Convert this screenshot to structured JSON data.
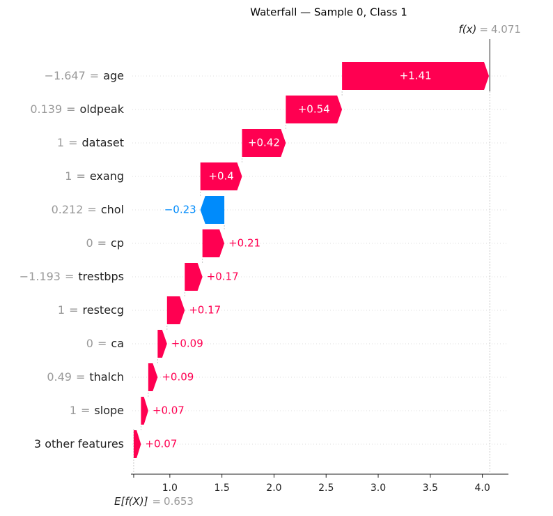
{
  "chart_data": {
    "type": "waterfall",
    "title": "Waterfall — Sample 0, Class 1",
    "separator": "=",
    "fx_label": "f(x)",
    "fx_value": 4.071,
    "base_label": "E[f(X)]",
    "base_value": 0.653,
    "feature_values": [
      "−1.647",
      "0.139",
      "1",
      "1",
      "0.212",
      "0",
      "−1.193",
      "1",
      "0",
      "0.49",
      "1",
      null
    ],
    "categories": [
      "age",
      "oldpeak",
      "dataset",
      "exang",
      "chol",
      "cp",
      "trestbps",
      "restecg",
      "ca",
      "thalch",
      "slope",
      "3 other features"
    ],
    "values": [
      1.41,
      0.54,
      0.42,
      0.4,
      -0.23,
      0.21,
      0.17,
      0.17,
      0.09,
      0.09,
      0.07,
      0.07
    ],
    "value_labels": [
      "+1.41",
      "+0.54",
      "+0.42",
      "+0.4",
      "−0.23",
      "+0.21",
      "+0.17",
      "+0.17",
      "+0.09",
      "+0.09",
      "+0.07",
      "+0.07"
    ],
    "positive_color": "#ff0051",
    "negative_color": "#008bfb",
    "xlim": [
      0.64,
      4.25
    ],
    "xticks": [
      {
        "value": 1,
        "label": "1.0"
      },
      {
        "value": 1.5,
        "label": "1.5"
      },
      {
        "value": 2,
        "label": "2.0"
      },
      {
        "value": 2.5,
        "label": "2.5"
      },
      {
        "value": 3,
        "label": "3.0"
      },
      {
        "value": 3.5,
        "label": "3.5"
      },
      {
        "value": 4,
        "label": "4.0"
      }
    ]
  }
}
